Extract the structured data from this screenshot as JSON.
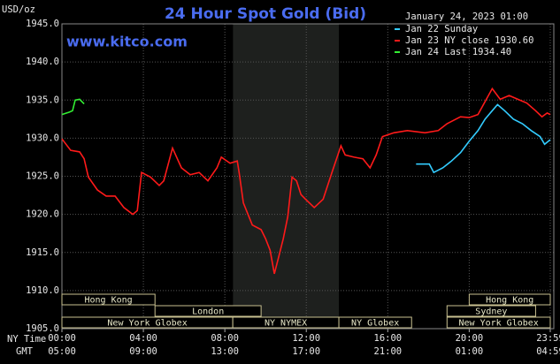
{
  "chart_data": {
    "type": "line",
    "title": "24 Hour Spot Gold (Bid)",
    "subtitle": "www.kitco.com",
    "y_label": "USD/oz",
    "date_label": "January 24, 2023 01:00",
    "x_label": "NY Time",
    "x2_label": "GMT",
    "xlim": [
      0,
      23.98
    ],
    "ylim": [
      1905,
      1945
    ],
    "yticks": [
      {
        "value": 1905,
        "label": "1905.0"
      },
      {
        "value": 1910,
        "label": "1910.0"
      },
      {
        "value": 1915,
        "label": "1915.0"
      },
      {
        "value": 1920,
        "label": "1920.0"
      },
      {
        "value": 1925,
        "label": "1925.0"
      },
      {
        "value": 1930,
        "label": "1930.0"
      },
      {
        "value": 1935,
        "label": "1935.0"
      },
      {
        "value": 1940,
        "label": "1940.0"
      },
      {
        "value": 1945,
        "label": "1945.0"
      }
    ],
    "xticks": [
      {
        "value": 0,
        "label": "00:00"
      },
      {
        "value": 4,
        "label": "04:00"
      },
      {
        "value": 8,
        "label": "08:00"
      },
      {
        "value": 12,
        "label": "12:00"
      },
      {
        "value": 16,
        "label": "16:00"
      },
      {
        "value": 20,
        "label": "20:00"
      },
      {
        "value": 23.98,
        "label": "23:59"
      }
    ],
    "x2ticks": [
      {
        "value": 0,
        "label": "05:00"
      },
      {
        "value": 4,
        "label": "09:00"
      },
      {
        "value": 8,
        "label": "13:00"
      },
      {
        "value": 12,
        "label": "17:00"
      },
      {
        "value": 16,
        "label": "21:00"
      },
      {
        "value": 20,
        "label": "01:00"
      },
      {
        "value": 23.98,
        "label": "04:59"
      }
    ],
    "grid": true,
    "shade": [
      8.4,
      13.6
    ],
    "sessions": [
      [
        {
          "label": "Hong Kong",
          "start": 0,
          "end": 4.57
        },
        {
          "label": "Hong Kong",
          "start": 20,
          "end": 23.98
        }
      ],
      [
        {
          "label": "London",
          "start": 4.57,
          "end": 9.78
        },
        {
          "label": "Sydney",
          "start": 18.91,
          "end": 23.26
        }
      ],
      [
        {
          "label": "New York Globex",
          "start": 0,
          "end": 8.39
        },
        {
          "label": "NY NYMEX",
          "start": 8.39,
          "end": 13.6
        },
        {
          "label": "NY Globex",
          "start": 13.6,
          "end": 17.17
        },
        {
          "label": "New York Globex",
          "start": 18.91,
          "end": 23.98
        }
      ]
    ],
    "series": [
      {
        "name": "Jan 22 Sunday",
        "color": "#33ccff",
        "x": [
          17.39,
          18.04,
          18.26,
          18.7,
          19.13,
          19.57,
          20,
          20.43,
          20.78,
          21.13,
          21.39,
          21.74,
          22.17,
          22.61,
          23.04,
          23.48,
          23.7,
          23.98
        ],
        "values": [
          1926.6,
          1926.6,
          1925.5,
          1926.1,
          1927.0,
          1928.1,
          1929.6,
          1931.0,
          1932.5,
          1933.6,
          1934.4,
          1933.6,
          1932.5,
          1931.9,
          1931.0,
          1930.2,
          1929.2,
          1929.8
        ]
      },
      {
        "name": "Jan 23 NY close 1930.60",
        "color": "#ff1a1a",
        "x": [
          0,
          0.43,
          0.87,
          1.09,
          1.3,
          1.74,
          2.17,
          2.61,
          3.04,
          3.48,
          3.7,
          3.91,
          4.35,
          4.78,
          5,
          5.43,
          5.87,
          6.3,
          6.74,
          7.17,
          7.61,
          7.83,
          8.26,
          8.61,
          8.7,
          8.91,
          9.35,
          9.78,
          10,
          10.22,
          10.43,
          10.65,
          10.87,
          11.09,
          11.3,
          11.52,
          11.74,
          11.96,
          12.39,
          12.83,
          13.26,
          13.7,
          13.91,
          14.35,
          14.78,
          15.13,
          15.43,
          15.74,
          16.3,
          16.96,
          17.83,
          18.48,
          18.91,
          19.57,
          20,
          20.43,
          20.78,
          21.13,
          21.52,
          21.96,
          22.39,
          22.83,
          23.26,
          23.57,
          23.83,
          23.98
        ],
        "values": [
          1929.9,
          1928.4,
          1928.2,
          1927.3,
          1924.9,
          1923.2,
          1922.4,
          1922.4,
          1920.9,
          1920.0,
          1920.5,
          1925.5,
          1924.9,
          1923.8,
          1924.4,
          1928.7,
          1926.1,
          1925.2,
          1925.5,
          1924.4,
          1926.1,
          1927.5,
          1926.7,
          1927.0,
          1925.5,
          1921.5,
          1918.6,
          1918.0,
          1916.8,
          1915.3,
          1912.2,
          1914.5,
          1916.8,
          1919.7,
          1924.9,
          1924.4,
          1922.6,
          1922.0,
          1920.9,
          1922.0,
          1925.5,
          1929.0,
          1927.8,
          1927.5,
          1927.3,
          1926.1,
          1927.8,
          1930.2,
          1930.7,
          1931.0,
          1930.7,
          1931.0,
          1931.9,
          1932.8,
          1932.7,
          1933.1,
          1934.8,
          1936.5,
          1935.1,
          1935.6,
          1935.1,
          1934.6,
          1933.6,
          1932.8,
          1933.3,
          1933.1
        ]
      },
      {
        "name": "Jan 24 Last 1934.40",
        "color": "#33ee33",
        "x": [
          0,
          0.35,
          0.52,
          0.65,
          0.87,
          1.09
        ],
        "values": [
          1933.1,
          1933.4,
          1933.6,
          1935.0,
          1935.1,
          1934.5
        ]
      }
    ]
  }
}
